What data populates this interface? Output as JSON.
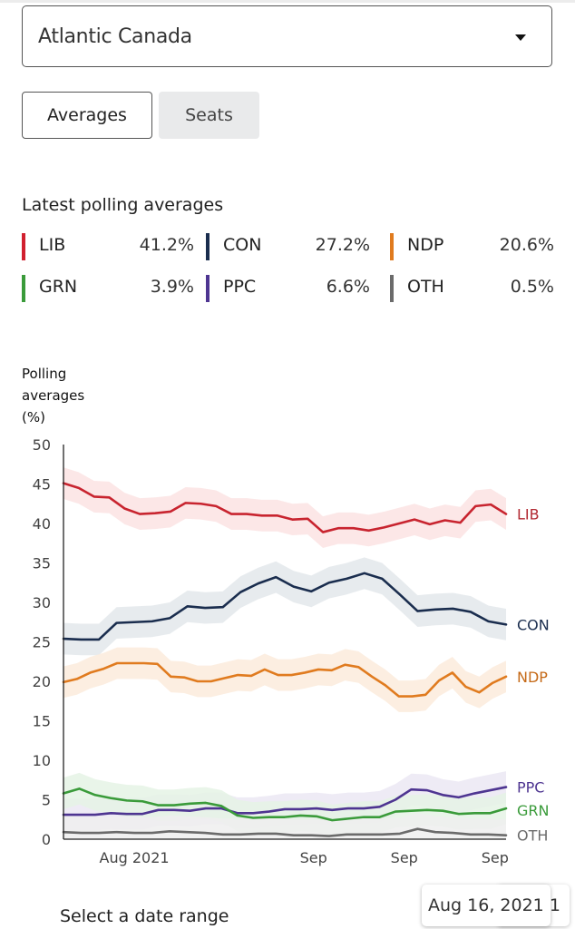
{
  "region_select": {
    "value": "Atlantic Canada",
    "icon": "caret-down-icon"
  },
  "tabs": [
    {
      "label": "Averages",
      "active": true
    },
    {
      "label": "Seats",
      "active": false
    }
  ],
  "latest": {
    "title": "Latest polling averages",
    "parties": [
      {
        "name": "LIB",
        "value": "41.2%",
        "color": "#d1202f"
      },
      {
        "name": "CON",
        "value": "27.2%",
        "color": "#1a2d4e"
      },
      {
        "name": "NDP",
        "value": "20.6%",
        "color": "#e07b1f"
      },
      {
        "name": "GRN",
        "value": "3.9%",
        "color": "#3a9b3a"
      },
      {
        "name": "PPC",
        "value": "6.6%",
        "color": "#4e3591"
      },
      {
        "name": "OTH",
        "value": "0.5%",
        "color": "#6b6b6b"
      }
    ]
  },
  "chart_data": {
    "type": "line",
    "title": "Polling averages (%)",
    "ylabel_lines": [
      "Polling",
      "averages",
      "(%)"
    ],
    "ylim": [
      0,
      50
    ],
    "yticks": [
      0,
      5,
      10,
      15,
      20,
      25,
      30,
      35,
      40,
      45,
      50
    ],
    "xticks": [
      {
        "label": "Aug 2021",
        "pos": 0.16
      },
      {
        "label": "Sep",
        "pos": 0.565
      },
      {
        "label": "Sep",
        "pos": 0.77
      },
      {
        "label": "Sep",
        "pos": 0.975
      }
    ],
    "grid": false,
    "band_halfwidth": 2,
    "series": [
      {
        "name": "LIB",
        "color": "#c8242f",
        "band": "#fbe3e3",
        "label_color": "#b22a33",
        "values": [
          45.1,
          44.5,
          43.4,
          43.3,
          41.9,
          41.2,
          41.3,
          41.5,
          42.6,
          42.5,
          42.2,
          41.2,
          41.2,
          41.0,
          41.0,
          40.5,
          40.6,
          38.9,
          39.4,
          39.4,
          39.1,
          39.5,
          40.0,
          40.5,
          39.9,
          40.4,
          40.1,
          42.2,
          42.4,
          41.2
        ]
      },
      {
        "name": "CON",
        "color": "#1a2d4e",
        "band": "#e3e7eb",
        "label_color": "#1a2d4e",
        "values": [
          25.4,
          25.3,
          25.3,
          27.4,
          27.5,
          27.6,
          28.0,
          29.5,
          29.3,
          29.4,
          31.3,
          32.4,
          33.2,
          32.0,
          31.4,
          32.5,
          33.0,
          33.7,
          33.0,
          31.0,
          28.9,
          29.1,
          29.2,
          28.8,
          27.6,
          27.2
        ]
      },
      {
        "name": "NDP",
        "color": "#e07b1f",
        "band": "#fcebdc",
        "label_color": "#c56a18",
        "values": [
          19.9,
          20.3,
          21.1,
          21.6,
          22.3,
          22.3,
          22.3,
          22.2,
          20.6,
          20.5,
          20.0,
          20.0,
          20.4,
          20.8,
          20.7,
          21.5,
          20.8,
          20.8,
          21.1,
          21.5,
          21.4,
          22.1,
          21.8,
          20.6,
          19.5,
          18.1,
          18.1,
          18.3,
          20.1,
          21.1,
          19.3,
          18.6,
          19.8,
          20.6
        ]
      },
      {
        "name": "PPC",
        "color": "#4e3591",
        "band": "#ebe7f3",
        "label_color": "#4e3591",
        "values": [
          3.1,
          3.1,
          3.1,
          3.3,
          3.2,
          3.2,
          3.7,
          3.7,
          3.6,
          3.9,
          3.9,
          3.3,
          3.3,
          3.5,
          3.8,
          3.8,
          3.9,
          3.7,
          3.9,
          3.9,
          4.1,
          5.0,
          6.3,
          6.2,
          5.6,
          5.3,
          5.8,
          6.2,
          6.6
        ]
      },
      {
        "name": "GRN",
        "color": "#3a9b3a",
        "band": "#e5f3e5",
        "label_color": "#3a9b3a",
        "values": [
          5.8,
          6.4,
          5.6,
          5.2,
          4.9,
          4.8,
          4.3,
          4.3,
          4.5,
          4.6,
          4.2,
          3.0,
          2.7,
          2.8,
          2.8,
          3.0,
          2.9,
          2.4,
          2.6,
          2.8,
          2.8,
          3.5,
          3.6,
          3.7,
          3.6,
          3.2,
          3.3,
          3.3,
          3.9
        ]
      },
      {
        "name": "OTH",
        "color": "#6b6b6b",
        "band": "#efefef",
        "label_color": "#6b6b6b",
        "values": [
          0.9,
          0.8,
          0.8,
          0.9,
          0.8,
          0.8,
          1.0,
          0.9,
          0.8,
          0.6,
          0.6,
          0.7,
          0.7,
          0.5,
          0.5,
          0.4,
          0.6,
          0.6,
          0.6,
          0.7,
          1.3,
          0.9,
          0.8,
          0.6,
          0.6,
          0.5
        ]
      }
    ],
    "end_labels": [
      "LIB",
      "CON",
      "NDP",
      "PPC",
      "GRN",
      "OTH"
    ]
  },
  "date_range": {
    "title": "Select a date range"
  },
  "tooltip": {
    "text": "Aug 16, 2021",
    "behind_text": "1"
  }
}
